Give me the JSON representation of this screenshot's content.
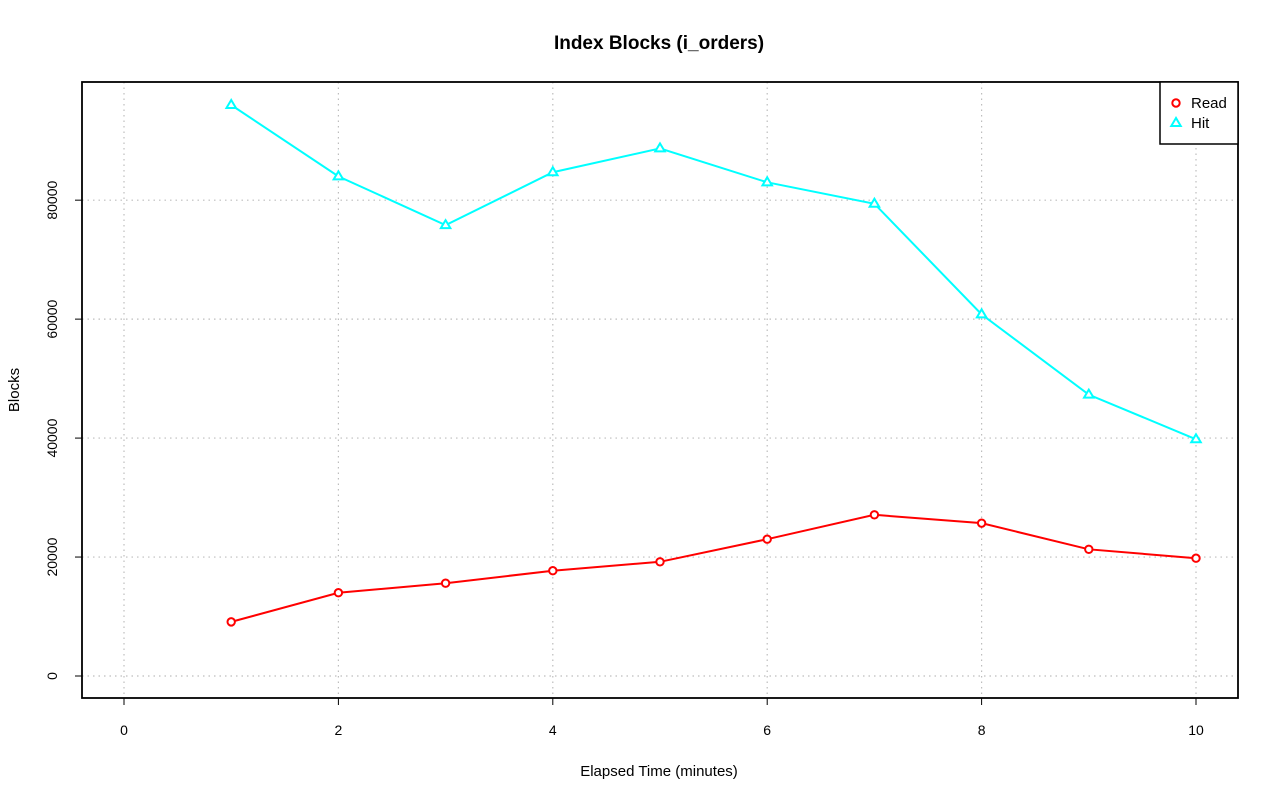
{
  "chart_data": {
    "type": "line",
    "title": "Index Blocks (i_orders)",
    "xlabel": "Elapsed Time (minutes)",
    "ylabel": "Blocks",
    "xlim": [
      0,
      10
    ],
    "ylim": [
      0,
      96000
    ],
    "xticks": [
      0,
      2,
      4,
      6,
      8,
      10
    ],
    "yticks": [
      0,
      20000,
      40000,
      60000,
      80000
    ],
    "grid": true,
    "legend_position": "top-right",
    "x": [
      1,
      2,
      3,
      4,
      5,
      6,
      7,
      8,
      9,
      10
    ],
    "series": [
      {
        "name": "Read",
        "color": "#ff0000",
        "marker": "circle",
        "values": [
          9100,
          14000,
          15600,
          17700,
          19200,
          23000,
          27100,
          25700,
          21300,
          19800
        ]
      },
      {
        "name": "Hit",
        "color": "#00ffff",
        "marker": "triangle",
        "values": [
          96000,
          84000,
          75800,
          84700,
          88700,
          83000,
          79400,
          60800,
          47300,
          39800
        ]
      }
    ]
  }
}
